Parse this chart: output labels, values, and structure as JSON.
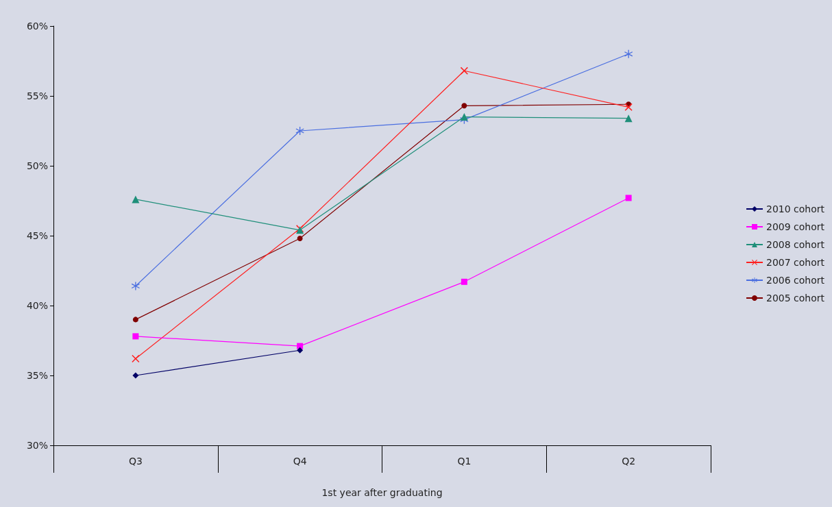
{
  "chart_data": {
    "type": "line",
    "xlabel": "1st year after graduating",
    "categories": [
      "Q3",
      "Q4",
      "Q1",
      "Q2"
    ],
    "ylim": [
      30,
      60
    ],
    "yticks": [
      {
        "value": 30,
        "label": "30%"
      },
      {
        "value": 35,
        "label": "35%"
      },
      {
        "value": 40,
        "label": "40%"
      },
      {
        "value": 45,
        "label": "45%"
      },
      {
        "value": 50,
        "label": "50%"
      },
      {
        "value": 55,
        "label": "55%"
      },
      {
        "value": 60,
        "label": "60%"
      }
    ],
    "legend": "right",
    "series": [
      {
        "name": "2010 cohort",
        "color": "#000066",
        "marker": "diamond",
        "values": [
          35.0,
          36.8,
          null,
          null
        ]
      },
      {
        "name": "2009 cohort",
        "color": "#ff00ff",
        "marker": "square",
        "values": [
          37.8,
          37.1,
          41.7,
          47.7
        ]
      },
      {
        "name": "2008 cohort",
        "color": "#1f8f7a",
        "marker": "triangle",
        "values": [
          47.6,
          45.4,
          53.5,
          53.4
        ]
      },
      {
        "name": "2007 cohort",
        "color": "#ff2020",
        "marker": "cross",
        "values": [
          36.2,
          45.5,
          56.8,
          54.2
        ]
      },
      {
        "name": "2006 cohort",
        "color": "#4a6ee0",
        "marker": "star",
        "values": [
          41.4,
          52.5,
          53.3,
          58.0
        ]
      },
      {
        "name": "2005 cohort",
        "color": "#800000",
        "marker": "circle",
        "values": [
          39.0,
          44.8,
          54.3,
          54.4
        ]
      }
    ]
  }
}
